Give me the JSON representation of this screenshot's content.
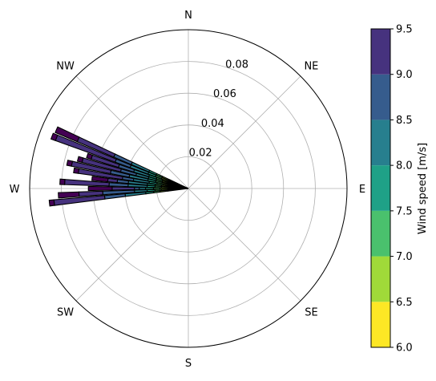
{
  "chart_data": {
    "type": "polar-bar",
    "title": "",
    "radial_axis": {
      "ticks": [
        0.02,
        0.04,
        0.06,
        0.08
      ],
      "tick_labels": [
        "0.02",
        "0.04",
        "0.06",
        "0.08"
      ],
      "max": 0.1,
      "grid": true
    },
    "direction_labels": [
      {
        "name": "N",
        "angle_deg": 0
      },
      {
        "name": "NE",
        "angle_deg": 45
      },
      {
        "name": "E",
        "angle_deg": 90
      },
      {
        "name": "SE",
        "angle_deg": 135
      },
      {
        "name": "S",
        "angle_deg": 180
      },
      {
        "name": "SW",
        "angle_deg": 225
      },
      {
        "name": "W",
        "angle_deg": 270
      },
      {
        "name": "NW",
        "angle_deg": 315
      }
    ],
    "colorbar": {
      "label": "Wind speed [m/s]",
      "min": 6.0,
      "max": 9.5,
      "ticks": [
        "6.0",
        "6.5",
        "7.0",
        "7.5",
        "8.0",
        "8.5",
        "9.0",
        "9.5"
      ],
      "bins": [
        {
          "from": 6.0,
          "to": 6.5,
          "color": "#fde725"
        },
        {
          "from": 6.5,
          "to": 7.0,
          "color": "#a0da39"
        },
        {
          "from": 7.0,
          "to": 7.5,
          "color": "#4ac16d"
        },
        {
          "from": 7.5,
          "to": 8.0,
          "color": "#1fa187"
        },
        {
          "from": 8.0,
          "to": 8.5,
          "color": "#277f8e"
        },
        {
          "from": 8.5,
          "to": 9.0,
          "color": "#365c8d"
        },
        {
          "from": 9.0,
          "to": 9.5,
          "color": "#46327e"
        },
        {
          "from": 9.5,
          "to": 10.0,
          "color": "#440154"
        }
      ]
    },
    "sectors": [
      {
        "direction_deg": 264,
        "speed_bins": [
          0.013,
          0.005,
          0.004,
          0.005,
          0.013,
          0.013,
          0.032,
          0.003
        ]
      },
      {
        "direction_deg": 267,
        "speed_bins": [
          0.012,
          0.005,
          0.004,
          0.005,
          0.008,
          0.02,
          0.015,
          0.013
        ]
      },
      {
        "direction_deg": 270,
        "speed_bins": [
          0.013,
          0.005,
          0.004,
          0.005,
          0.004,
          0.003,
          0.014,
          0.015
        ]
      },
      {
        "direction_deg": 273,
        "speed_bins": [
          0.012,
          0.005,
          0.004,
          0.005,
          0.012,
          0.012,
          0.028,
          0.003
        ]
      },
      {
        "direction_deg": 276,
        "speed_bins": [
          0.012,
          0.005,
          0.004,
          0.005,
          0.012,
          0.007,
          0.006,
          0.01
        ]
      },
      {
        "direction_deg": 279,
        "speed_bins": [
          0.011,
          0.005,
          0.004,
          0.005,
          0.01,
          0.007,
          0.028,
          0.003
        ]
      },
      {
        "direction_deg": 282,
        "speed_bins": [
          0.012,
          0.005,
          0.004,
          0.005,
          0.012,
          0.012,
          0.025,
          0.003
        ]
      },
      {
        "direction_deg": 285,
        "speed_bins": [
          0.012,
          0.005,
          0.004,
          0.005,
          0.008,
          0.01,
          0.025,
          0.003
        ]
      },
      {
        "direction_deg": 288,
        "speed_bins": [
          0.012,
          0.005,
          0.004,
          0.005,
          0.01,
          0.01,
          0.018,
          0.003
        ]
      },
      {
        "direction_deg": 291,
        "speed_bins": [
          0.013,
          0.005,
          0.004,
          0.005,
          0.012,
          0.01,
          0.04,
          0.003
        ]
      },
      {
        "direction_deg": 294,
        "speed_bins": [
          0.013,
          0.005,
          0.004,
          0.005,
          0.012,
          0.012,
          0.025,
          0.015
        ]
      }
    ]
  }
}
